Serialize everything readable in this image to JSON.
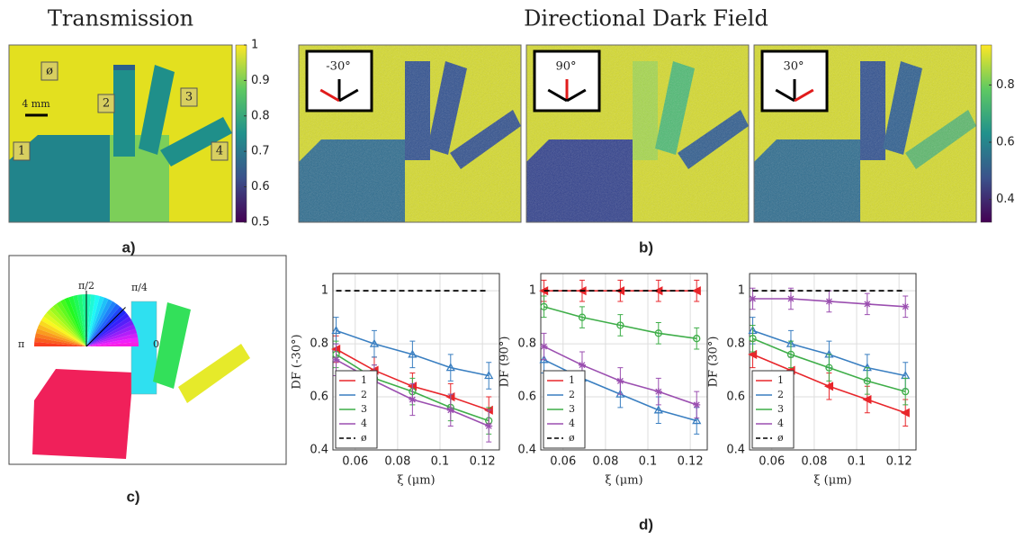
{
  "header": {
    "left_title": "Transmission",
    "right_title": "Directional Dark Field"
  },
  "panel_labels": {
    "a": "a)",
    "b": "b)",
    "c": "c)",
    "d": "d)"
  },
  "panel_a": {
    "sample_labels": [
      "ø",
      "1",
      "2",
      "3",
      "4"
    ],
    "scale_bar": "4 mm",
    "colorbar": {
      "lim": [
        0.5,
        1
      ],
      "ticks": [
        0.5,
        0.6,
        0.7,
        0.8,
        0.9,
        1
      ]
    }
  },
  "panel_b": {
    "angles": [
      "-30°",
      "90°",
      "30°"
    ],
    "colorbar": {
      "lim": [
        0.32,
        0.94
      ],
      "ticks": [
        0.4,
        0.6,
        0.8
      ]
    }
  },
  "panel_c": {
    "wheel_labels": [
      "π/2",
      "π/4",
      "π",
      "0"
    ]
  },
  "chart_data": [
    {
      "type": "line",
      "ylabel": "DF (-30°)",
      "xlabel": "ξ (μm)",
      "x": [
        0.051,
        0.069,
        0.087,
        0.105,
        0.123
      ],
      "xlim": [
        0.0495,
        0.128
      ],
      "ylim": [
        0.4,
        1.065
      ],
      "xticks": [
        0.06,
        0.08,
        0.1,
        0.12
      ],
      "yticks": [
        0.4,
        0.6,
        0.8,
        1
      ],
      "grid": true,
      "legend": "lower left",
      "series": [
        {
          "name": "1",
          "color": "#e8262b",
          "values": [
            0.78,
            0.7,
            0.64,
            0.6,
            0.55
          ],
          "error": 0.05
        },
        {
          "name": "2",
          "color": "#3a7fc1",
          "values": [
            0.85,
            0.8,
            0.76,
            0.71,
            0.68
          ],
          "error": 0.05
        },
        {
          "name": "3",
          "color": "#3fae49",
          "values": [
            0.76,
            0.67,
            0.62,
            0.56,
            0.51
          ],
          "error": 0.05
        },
        {
          "name": "4",
          "color": "#9b4fb0",
          "values": [
            0.74,
            0.66,
            0.59,
            0.55,
            0.49
          ],
          "error": 0.06
        },
        {
          "name": "ø",
          "color": "#000000",
          "values": [
            1,
            1,
            1,
            1,
            1
          ]
        }
      ]
    },
    {
      "type": "line",
      "ylabel": "DF (90°)",
      "xlabel": "ξ (μm)",
      "x": [
        0.051,
        0.069,
        0.087,
        0.105,
        0.123
      ],
      "xlim": [
        0.0495,
        0.128
      ],
      "ylim": [
        0.4,
        1.065
      ],
      "xticks": [
        0.06,
        0.08,
        0.1,
        0.12
      ],
      "yticks": [
        0.4,
        0.6,
        0.8,
        1
      ],
      "grid": true,
      "legend": "lower left",
      "series": [
        {
          "name": "1",
          "color": "#e8262b",
          "values": [
            1,
            1,
            1,
            1,
            1
          ],
          "error": 0.04
        },
        {
          "name": "2",
          "color": "#3a7fc1",
          "values": [
            0.74,
            0.67,
            0.61,
            0.55,
            0.51
          ],
          "error": 0.05
        },
        {
          "name": "3",
          "color": "#3fae49",
          "values": [
            0.94,
            0.9,
            0.87,
            0.84,
            0.82
          ],
          "error": 0.04
        },
        {
          "name": "4",
          "color": "#9b4fb0",
          "values": [
            0.79,
            0.72,
            0.66,
            0.62,
            0.57
          ],
          "error": 0.05
        },
        {
          "name": "ø",
          "color": "#000000",
          "values": [
            1,
            1,
            1,
            1,
            1
          ]
        }
      ]
    },
    {
      "type": "line",
      "ylabel": "DF (30°)",
      "xlabel": "ξ (μm)",
      "x": [
        0.051,
        0.069,
        0.087,
        0.105,
        0.123
      ],
      "xlim": [
        0.0495,
        0.128
      ],
      "ylim": [
        0.4,
        1.065
      ],
      "xticks": [
        0.06,
        0.08,
        0.1,
        0.12
      ],
      "yticks": [
        0.4,
        0.6,
        0.8,
        1
      ],
      "grid": true,
      "legend": "lower left",
      "series": [
        {
          "name": "1",
          "color": "#e8262b",
          "values": [
            0.76,
            0.7,
            0.64,
            0.59,
            0.54
          ],
          "error": 0.05
        },
        {
          "name": "2",
          "color": "#3a7fc1",
          "values": [
            0.85,
            0.8,
            0.76,
            0.71,
            0.68
          ],
          "error": 0.05
        },
        {
          "name": "3",
          "color": "#3fae49",
          "values": [
            0.82,
            0.76,
            0.71,
            0.66,
            0.62
          ],
          "error": 0.05
        },
        {
          "name": "4",
          "color": "#9b4fb0",
          "values": [
            0.97,
            0.97,
            0.96,
            0.95,
            0.94
          ],
          "error": 0.04
        },
        {
          "name": "ø",
          "color": "#000000",
          "values": [
            1,
            1,
            1,
            1,
            1
          ]
        }
      ]
    }
  ]
}
